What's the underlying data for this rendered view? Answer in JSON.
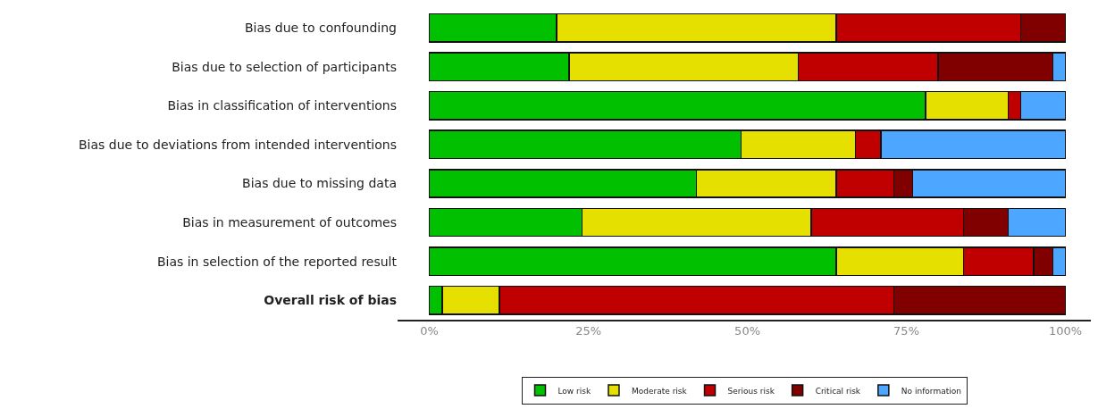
{
  "chart_data": {
    "type": "bar",
    "orientation": "horizontal",
    "stacked": true,
    "categories": [
      "Bias due to confounding",
      "Bias due to selection of participants",
      "Bias in classification of interventions",
      "Bias due to deviations from intended interventions",
      "Bias due to missing data",
      "Bias in measurement of outcomes",
      "Bias in selection of the reported result",
      "Overall risk of bias"
    ],
    "series": [
      {
        "name": "Low risk",
        "color": "#00c000",
        "values": [
          20,
          22,
          78,
          49,
          42,
          24,
          64,
          2
        ]
      },
      {
        "name": "Moderate risk",
        "color": "#e5e000",
        "values": [
          44,
          36,
          13,
          18,
          22,
          36,
          20,
          9
        ]
      },
      {
        "name": "Serious risk",
        "color": "#c00000",
        "values": [
          29,
          22,
          2,
          4,
          9,
          24,
          11,
          62
        ]
      },
      {
        "name": "Critical risk",
        "color": "#800000",
        "values": [
          7,
          18,
          null,
          null,
          3,
          7,
          3,
          27
        ]
      },
      {
        "name": "No information",
        "color": "#4da6ff",
        "values": [
          null,
          2,
          7,
          29,
          24,
          9,
          2,
          null
        ]
      }
    ],
    "xlim": [
      -5,
      104
    ],
    "xticks": [
      {
        "value": 0,
        "label": "0%"
      },
      {
        "value": 25,
        "label": "25%"
      },
      {
        "value": 50,
        "label": "50%"
      },
      {
        "value": 75,
        "label": "75%"
      },
      {
        "value": 100,
        "label": "100%"
      }
    ],
    "legend": "bottom"
  }
}
